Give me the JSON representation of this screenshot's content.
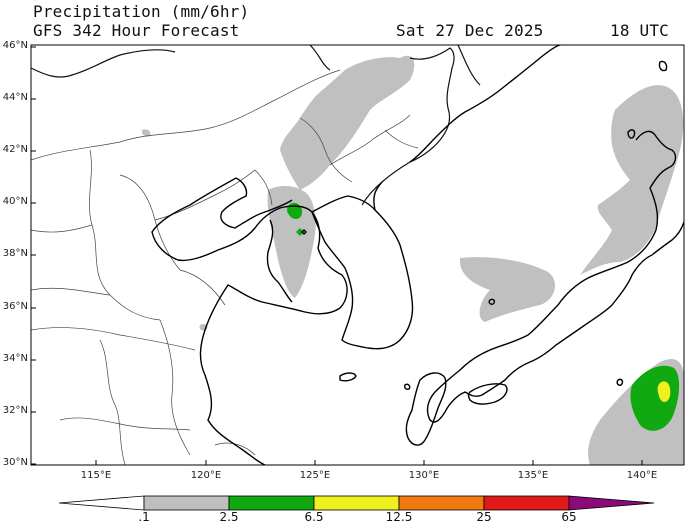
{
  "header": {
    "line1": "Precipitation (mm/6hr)",
    "line2": "GFS 342 Hour Forecast",
    "date": "Sat 27 Dec 2025",
    "time": "18 UTC"
  },
  "map": {
    "lat_labels": [
      "46°N",
      "44°N",
      "42°N",
      "40°N",
      "38°N",
      "36°N",
      "34°N",
      "32°N",
      "30°N"
    ],
    "lon_labels": [
      "115°E",
      "120°E",
      "125°E",
      "130°E",
      "135°E",
      "140°E"
    ],
    "lat_range": [
      30,
      46
    ],
    "lon_range": [
      112.5,
      142
    ],
    "gridlines": false
  },
  "colorbar": {
    "labels": [
      ".1",
      "2.5",
      "6.5",
      "12.5",
      "25",
      "65"
    ],
    "colors": [
      "#ffffff",
      "#bfbfbf",
      "#11a911",
      "#f0f020",
      "#f07a10",
      "#e01a1a",
      "#8b0a7a"
    ]
  }
}
